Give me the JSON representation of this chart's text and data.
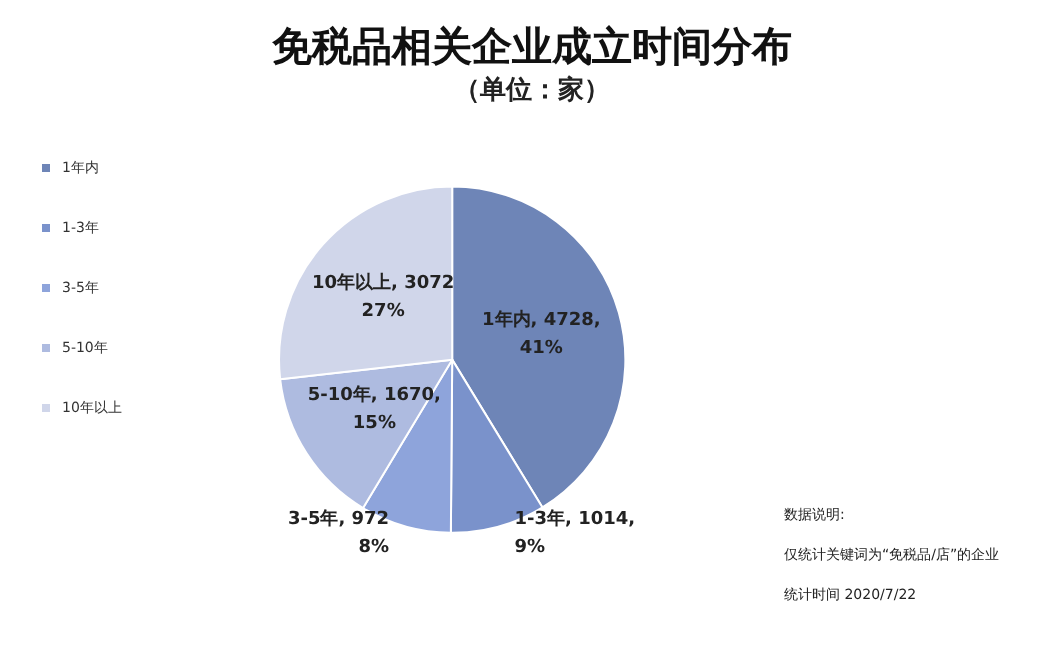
{
  "chart_data": {
    "type": "pie",
    "title": "免税品相关企业成立时间分布",
    "subtitle": "（单位：家）",
    "categories": [
      "1年内",
      "1-3年",
      "3-5年",
      "5-10年",
      "10年以上"
    ],
    "values": [
      4728,
      1014,
      972,
      1670,
      3072
    ],
    "colors": [
      "#6e85b7",
      "#7a92cb",
      "#8ea4db",
      "#aebbe0",
      "#d0d6ea"
    ],
    "value_labels": [
      "1年内, 4728,\n\n41%",
      "1-3年, 1014,\n\n9%",
      "3-5年, 972\n\n8%",
      "5-10年, 1670,\n\n15%",
      "10年以上, 3072\n\n27%"
    ],
    "legend": "left",
    "annotations": [
      "数据说明:",
      "仅统计关键词为“免税品/店”的企业",
      "统计时间 2020/7/22"
    ]
  }
}
